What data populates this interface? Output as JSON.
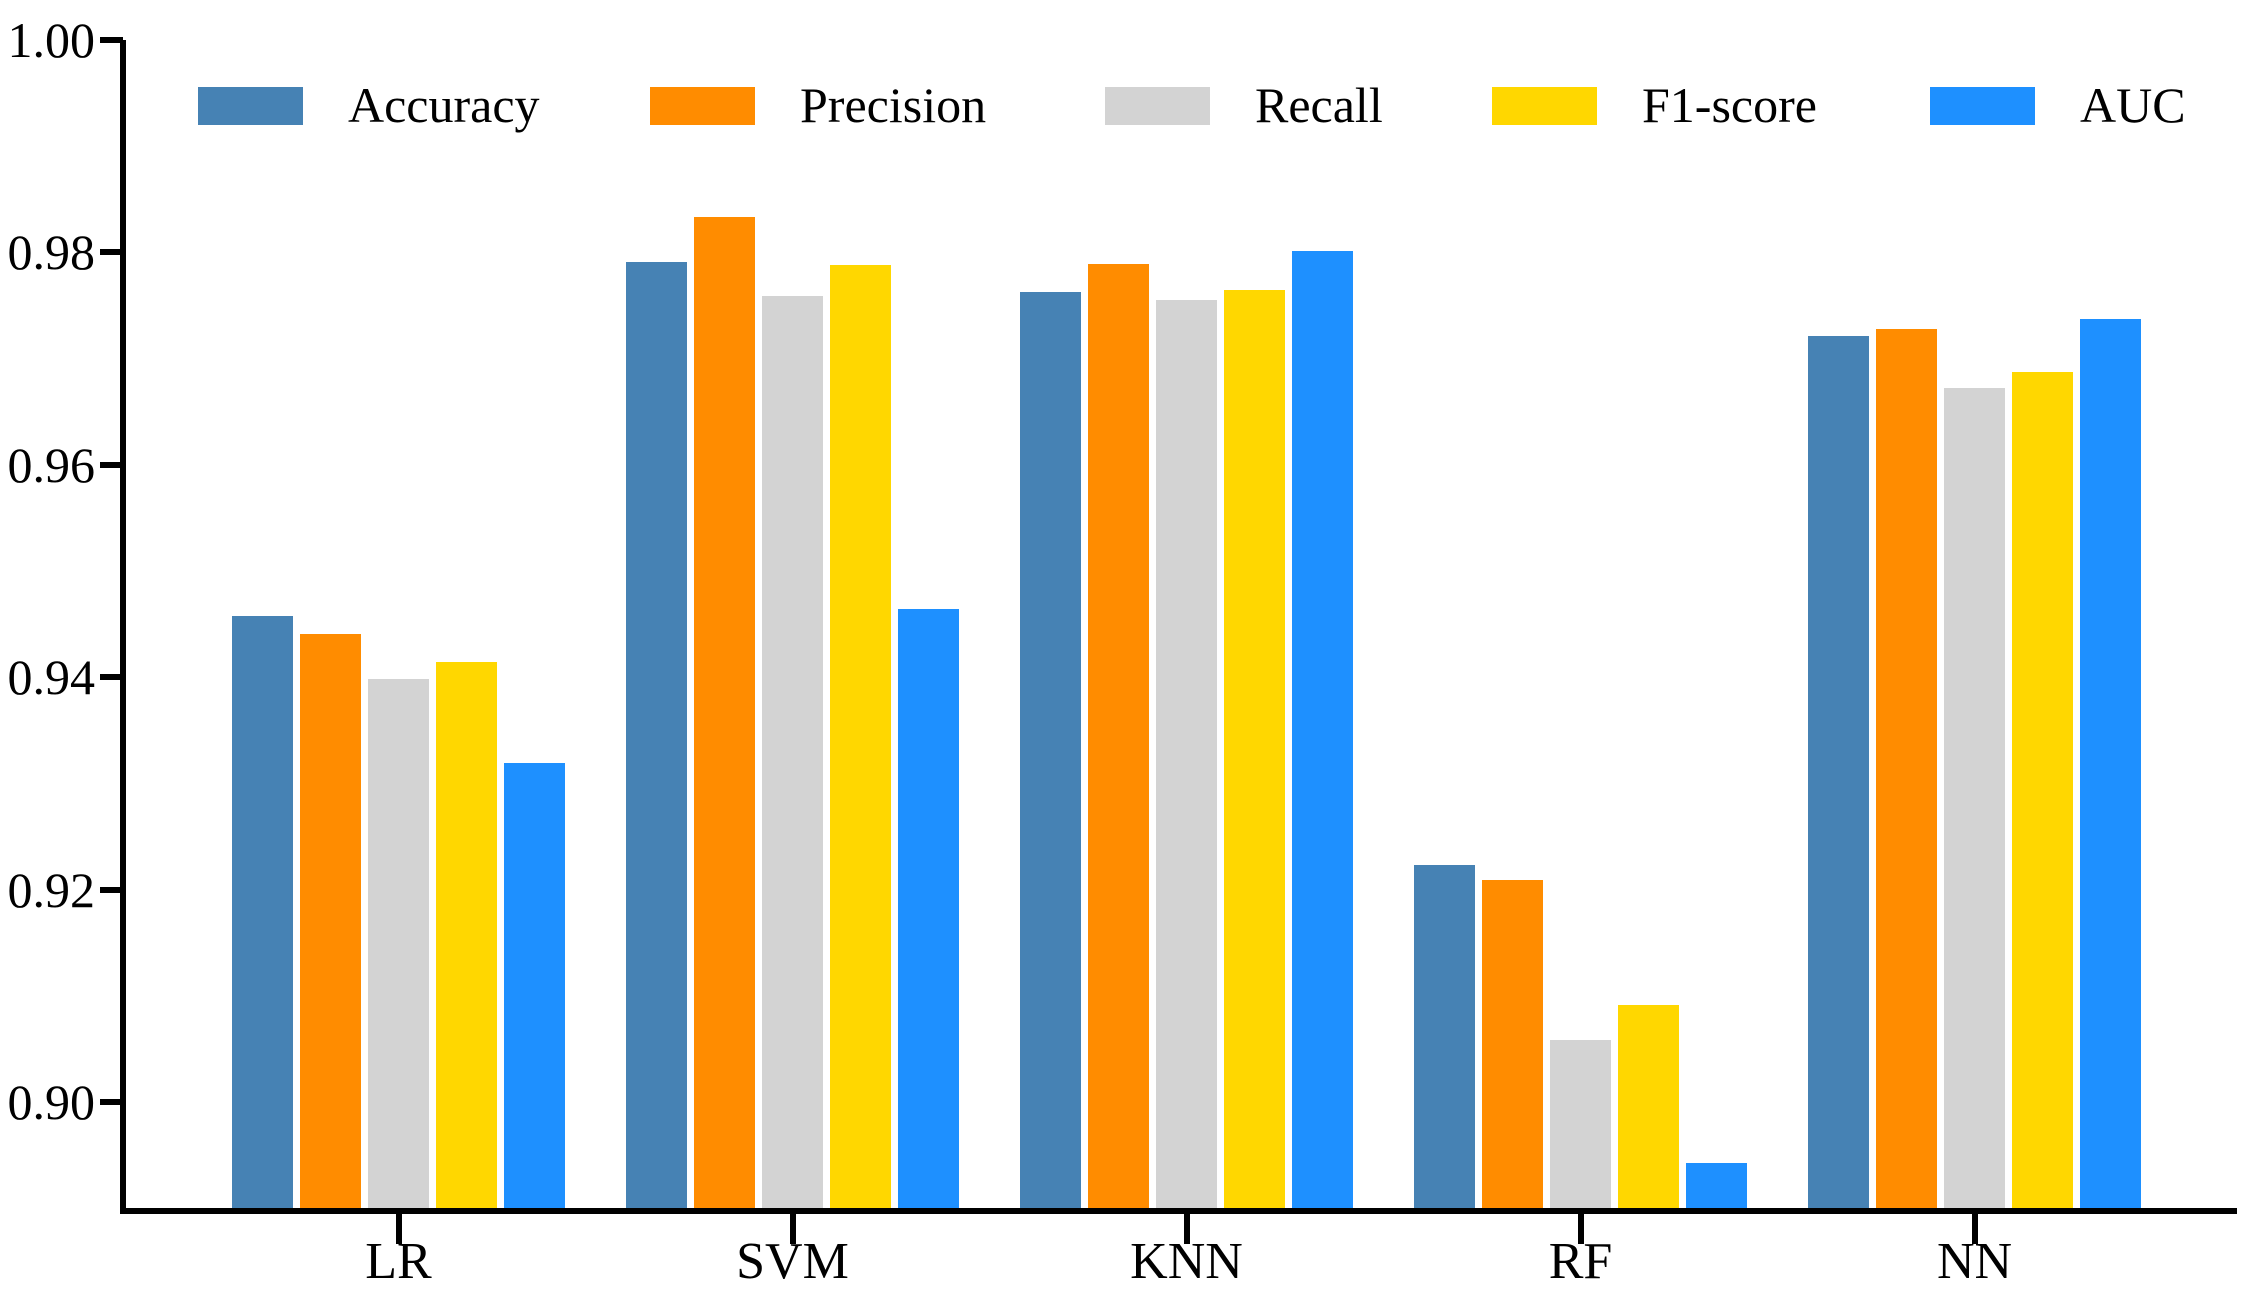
{
  "chart_data": {
    "type": "bar",
    "title": "",
    "xlabel": "",
    "ylabel": "",
    "categories": [
      "LR",
      "SVM",
      "KNN",
      "RF",
      "NN"
    ],
    "series": [
      {
        "name": "Accuracy",
        "color": "#4682B4",
        "values": [
          0.9458,
          0.9791,
          0.9763,
          0.9223,
          0.9721
        ]
      },
      {
        "name": "Precision",
        "color": "#FF8C00",
        "values": [
          0.9441,
          0.9833,
          0.9789,
          0.9209,
          0.9728
        ]
      },
      {
        "name": "Recall",
        "color": "#D3D3D3",
        "values": [
          0.9398,
          0.9759,
          0.9755,
          0.9058,
          0.9672
        ]
      },
      {
        "name": "F1-score",
        "color": "#FFD700",
        "values": [
          0.9414,
          0.9788,
          0.9765,
          0.9091,
          0.9687
        ]
      },
      {
        "name": "AUC",
        "color": "#1E90FF",
        "values": [
          0.9319,
          0.9464,
          0.9801,
          0.8943,
          0.9737
        ]
      }
    ],
    "yticks": [
      1.0,
      0.98,
      0.96,
      0.94,
      0.92,
      0.9
    ],
    "ytick_labels": [
      "1.00",
      "0.98",
      "0.96",
      "0.94",
      "0.92",
      "0.90"
    ],
    "ylim": [
      0.8901,
      1.0
    ],
    "grid": false,
    "legend_position": "top",
    "axis_color": "#000000"
  }
}
